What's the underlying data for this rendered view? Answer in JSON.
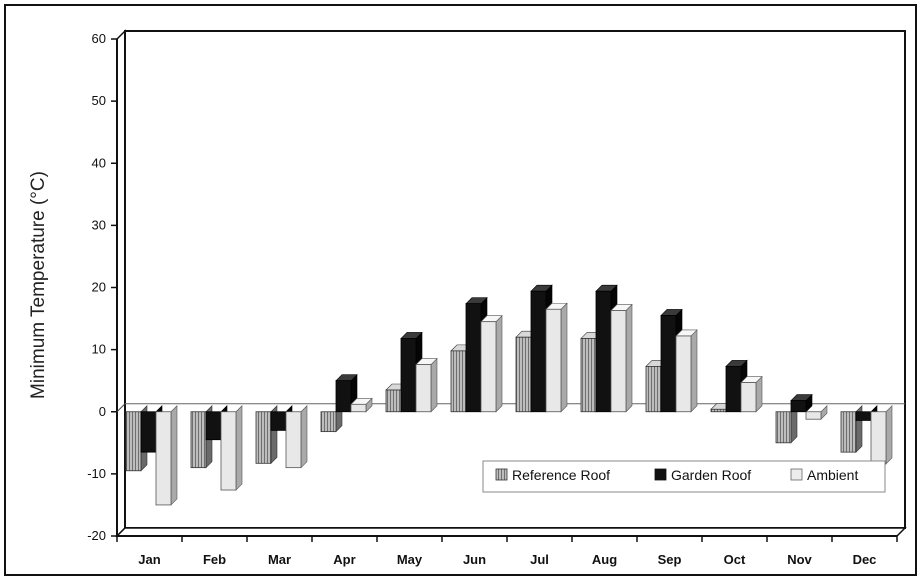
{
  "chart_data": {
    "type": "bar",
    "categories": [
      "Jan",
      "Feb",
      "Mar",
      "Apr",
      "May",
      "Jun",
      "Jul",
      "Aug",
      "Sep",
      "Oct",
      "Nov",
      "Dec"
    ],
    "series": [
      {
        "name": "Reference Roof",
        "values": [
          -9.5,
          -9,
          -8.3,
          -3.2,
          3.5,
          9.8,
          12,
          11.8,
          7.3,
          0.4,
          -5,
          -6.5
        ]
      },
      {
        "name": "Garden Roof",
        "values": [
          -6.5,
          -4.5,
          -3,
          5,
          11.8,
          17.4,
          19.4,
          19.4,
          15.5,
          7.3,
          1.8,
          -1.4
        ]
      },
      {
        "name": "Ambient",
        "values": [
          -15,
          -12.6,
          -9,
          1.2,
          7.6,
          14.5,
          16.5,
          16.3,
          12.2,
          4.7,
          -1.2,
          -8.4
        ]
      }
    ],
    "ylabel": "Minimum Temperature (°C)",
    "xlabel": "",
    "ylim": [
      -20,
      60
    ],
    "yticks": [
      -20,
      -10,
      0,
      10,
      20,
      30,
      40,
      50,
      60
    ],
    "grid": false,
    "legend": "bottom-right, inside plot",
    "colors": {
      "reference_roof": "#9a9a9a",
      "garden_roof": "#111111",
      "ambient": "#e2e2e2"
    }
  }
}
